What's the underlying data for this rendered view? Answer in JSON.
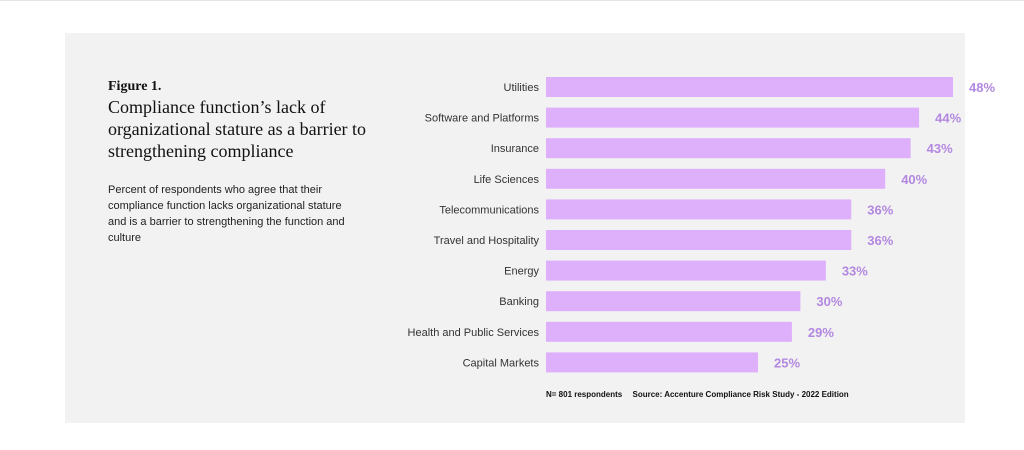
{
  "figure": {
    "label": "Figure 1.",
    "title": "Compliance function’s lack of organizational stature as a barrier to strengthening compliance",
    "description": "Percent of respondents who agree that their compliance function lacks organizational stature and is a barrier to strengthening the function and culture"
  },
  "colors": {
    "bar": "#deb0fb",
    "value_label": "#b388e0",
    "panel_background": "#f2f2f2"
  },
  "chart_data": {
    "type": "bar",
    "orientation": "horizontal",
    "title": "Compliance function’s lack of organizational stature as a barrier to strengthening compliance",
    "xlabel": "",
    "ylabel": "",
    "xlim": [
      0,
      50
    ],
    "grid": false,
    "categories": [
      "Utilities",
      "Software and Platforms",
      "Insurance",
      "Life Sciences",
      "Telecommunications",
      "Travel and Hospitality",
      "Energy",
      "Banking",
      "Health and Public Services",
      "Capital Markets"
    ],
    "values": [
      48,
      44,
      43,
      40,
      36,
      36,
      33,
      30,
      29,
      25
    ],
    "value_labels": [
      "48%",
      "44%",
      "43%",
      "40%",
      "36%",
      "36%",
      "33%",
      "30%",
      "29%",
      "25%"
    ]
  },
  "footnote": {
    "respondents": "N= 801 respondents",
    "source": "Source: Accenture Compliance Risk Study - 2022 Edition"
  }
}
